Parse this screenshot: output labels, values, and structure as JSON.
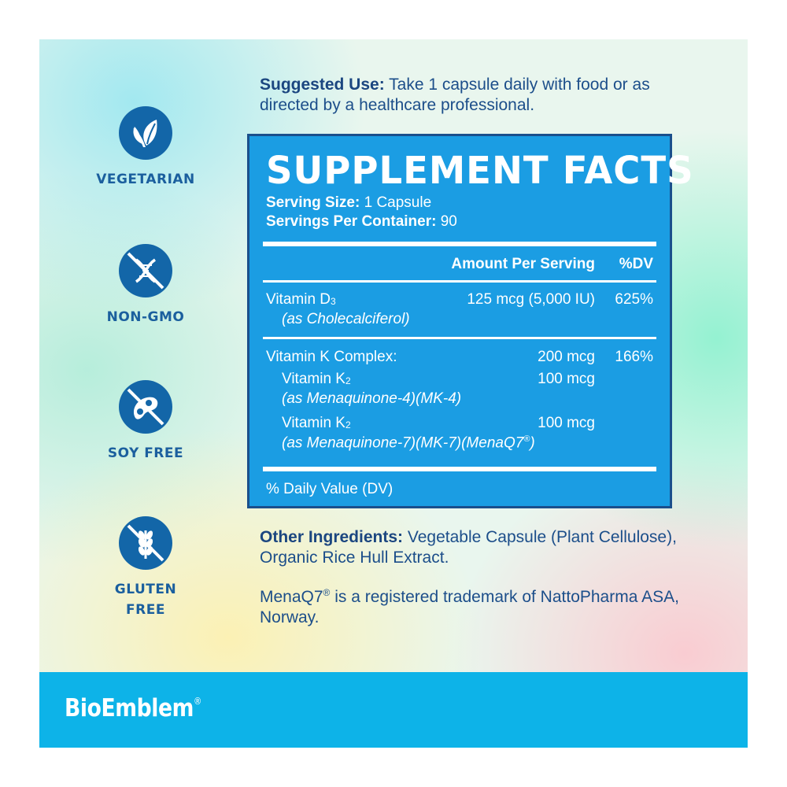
{
  "badges": [
    {
      "label": "VEGETARIAN",
      "icon": "leaf-icon"
    },
    {
      "label": "NON-GMO",
      "icon": "dna-crossed-icon"
    },
    {
      "label": "SOY FREE",
      "icon": "soybean-crossed-icon"
    },
    {
      "label": "GLUTEN",
      "label2": "FREE",
      "icon": "wheat-crossed-icon"
    }
  ],
  "suggested_use": {
    "label": "Suggested Use:",
    "text": "Take 1 capsule daily with food or as directed by a healthcare professional."
  },
  "facts": {
    "title": "SUPPLEMENT FACTS",
    "serving_size_label": "Serving Size:",
    "serving_size_value": "1 Capsule",
    "servings_label": "Servings Per Container:",
    "servings_value": "90",
    "header_amount": "Amount Per Serving",
    "header_dv": "%DV",
    "vitd": {
      "name": "Vitamin D",
      "sub": "3",
      "source": "(as Cholecalciferol)",
      "amount": "125 mcg (5,000 IU)",
      "dv": "625%"
    },
    "vitk": {
      "name": "Vitamin K Complex:",
      "amount": "200 mcg",
      "dv": "166%",
      "k2a_name": "Vitamin K",
      "k2a_sub": "2",
      "k2a_amount": "100 mcg",
      "k2a_source": "(as Menaquinone-4)(MK-4)",
      "k2b_name": "Vitamin K",
      "k2b_sub": "2",
      "k2b_amount": "100 mcg",
      "k2b_source": "(as Menaquinone-7)(MK-7)(MenaQ7",
      "k2b_reg": "®",
      "k2b_close": ")"
    },
    "footnote": "% Daily Value (DV)"
  },
  "other_ingredients": {
    "label": "Other Ingredients:",
    "text": "Vegetable Capsule (Plant Cellulose), Organic Rice Hull Extract."
  },
  "trademark": {
    "name": "MenaQ7",
    "reg": "®",
    "text": "is a registered trademark of NattoPharma ASA, Norway."
  },
  "brand": {
    "name": "BioEmblem",
    "reg": "®"
  },
  "colors": {
    "facts_bg": "#1b9de3",
    "facts_border": "#1a4f8c",
    "badge": "#1366a8",
    "footer": "#0db3e8",
    "text_dark_blue": "#1c4e8a"
  }
}
